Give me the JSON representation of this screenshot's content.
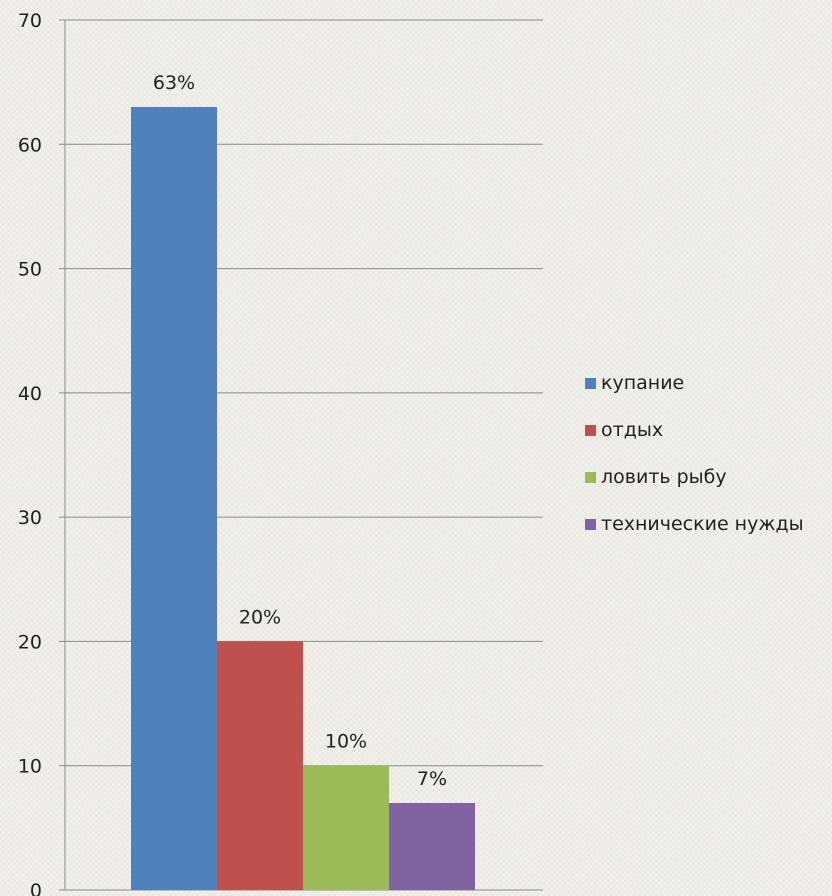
{
  "chart_data": {
    "type": "bar",
    "ylim": [
      0,
      70
    ],
    "yticks": [
      0,
      10,
      20,
      30,
      40,
      50,
      60,
      70
    ],
    "grid": true,
    "legend_position": "right",
    "series": [
      {
        "name": "купание",
        "value": 63,
        "label": "63%",
        "color": "#4f81bd"
      },
      {
        "name": "отдых",
        "value": 20,
        "label": "20%",
        "color": "#c0504d"
      },
      {
        "name": "ловить рыбу",
        "value": 10,
        "label": "10%",
        "color": "#9bbb59"
      },
      {
        "name": "технические нужды",
        "value": 7,
        "label": "7%",
        "color": "#8064a2"
      }
    ]
  }
}
